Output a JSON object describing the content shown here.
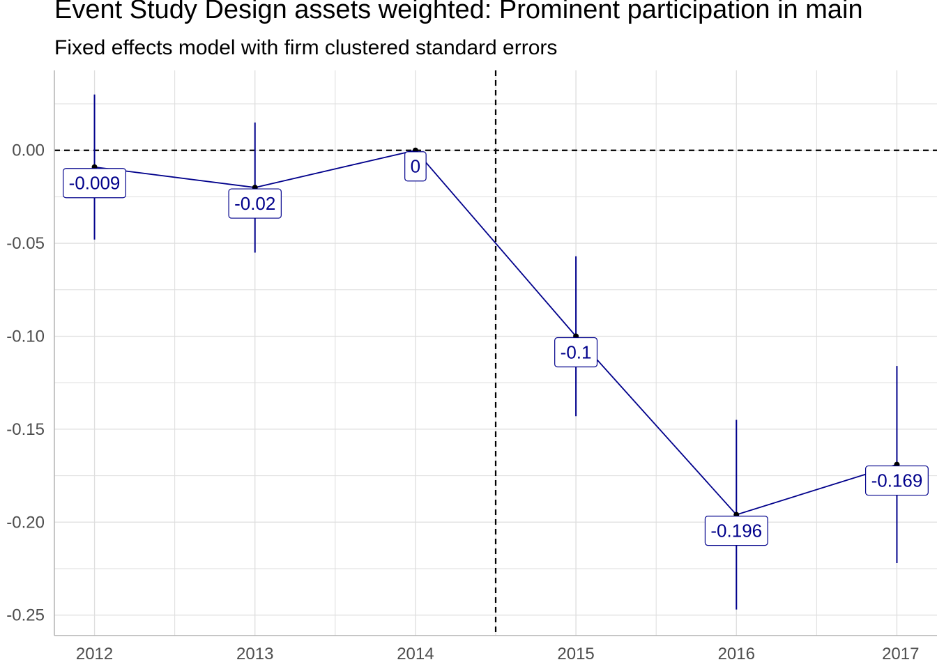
{
  "chart_data": {
    "type": "line",
    "title": "Event Study Design assets weighted: Prominent participation in main",
    "subtitle": "Fixed effects model with firm clustered standard errors",
    "xlabel": "",
    "ylabel": "",
    "x": [
      "2012",
      "2013",
      "2014",
      "2015",
      "2016",
      "2017"
    ],
    "series": [
      {
        "values": [
          -0.009,
          -0.02,
          0,
          -0.1,
          -0.196,
          -0.169
        ],
        "ci_lower": [
          -0.048,
          -0.055,
          0,
          -0.143,
          -0.247,
          -0.222
        ],
        "ci_upper": [
          0.03,
          0.015,
          0,
          -0.057,
          -0.145,
          -0.116
        ],
        "labels": [
          "-0.009",
          "-0.02",
          "0",
          "-0.1",
          "-0.196",
          "-0.169"
        ]
      }
    ],
    "yticks": [
      "0.00",
      "-0.05",
      "-0.10",
      "-0.15",
      "-0.20",
      "-0.25"
    ],
    "ytick_values": [
      0,
      -0.05,
      -0.1,
      -0.15,
      -0.2,
      -0.25
    ],
    "ylim": [
      -0.261,
      0.043
    ],
    "xlim": [
      2011.75,
      2017.25
    ],
    "reference_lines": {
      "horizontal_y": 0,
      "vertical_x": 2014.5,
      "style": "dashed"
    },
    "grid": true,
    "colors": {
      "series": "#00008b",
      "points": "#000000",
      "grid": "#dedede",
      "reference": "#000000",
      "axis": "#b3b3b3"
    }
  }
}
